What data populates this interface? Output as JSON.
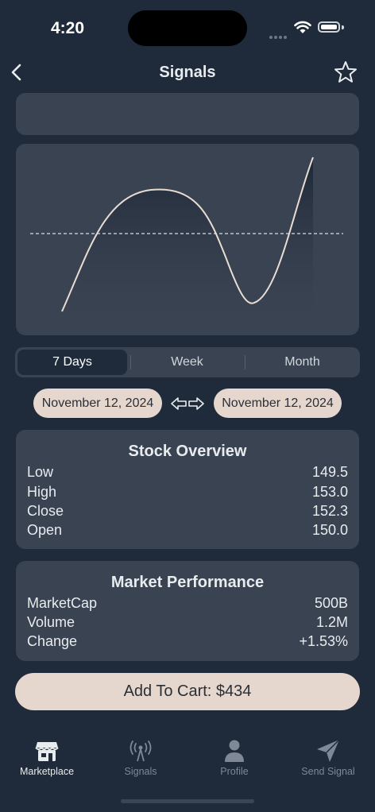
{
  "status": {
    "time": "4:20"
  },
  "header": {
    "title": "Signals",
    "back_icon": "chevron-left-icon",
    "favorite_icon": "star-icon"
  },
  "chart": {
    "line_color": "#e8ddd3",
    "type": "line"
  },
  "range_selector": {
    "options": [
      "7 Days",
      "Week",
      "Month"
    ],
    "selected": "7 Days"
  },
  "date_range": {
    "start": "November 12, 2024",
    "end": "November 12, 2024",
    "swap_icon": "left-right-arrows-icon"
  },
  "stock_overview": {
    "title": "Stock Overview",
    "rows": [
      {
        "label": "Low",
        "value": "149.5"
      },
      {
        "label": "High",
        "value": "153.0"
      },
      {
        "label": "Close",
        "value": "152.3"
      },
      {
        "label": "Open",
        "value": "150.0"
      }
    ]
  },
  "market_performance": {
    "title": "Market Performance",
    "rows": [
      {
        "label": "MarketCap",
        "value": "500B"
      },
      {
        "label": "Volume",
        "value": "1.2M"
      },
      {
        "label": "Change",
        "value": "+1.53%"
      }
    ]
  },
  "cart": {
    "label": "Add To Cart: $434"
  },
  "tabs": [
    {
      "label": "Marketplace",
      "icon": "storefront-icon",
      "active": true
    },
    {
      "label": "Signals",
      "icon": "antenna-icon",
      "active": false
    },
    {
      "label": "Profile",
      "icon": "person-icon",
      "active": false
    },
    {
      "label": "Send Signal",
      "icon": "paper-plane-icon",
      "active": false
    }
  ],
  "colors": {
    "background": "#1f2b3a",
    "card": "#3a4352",
    "accent": "#e5d7cd"
  }
}
